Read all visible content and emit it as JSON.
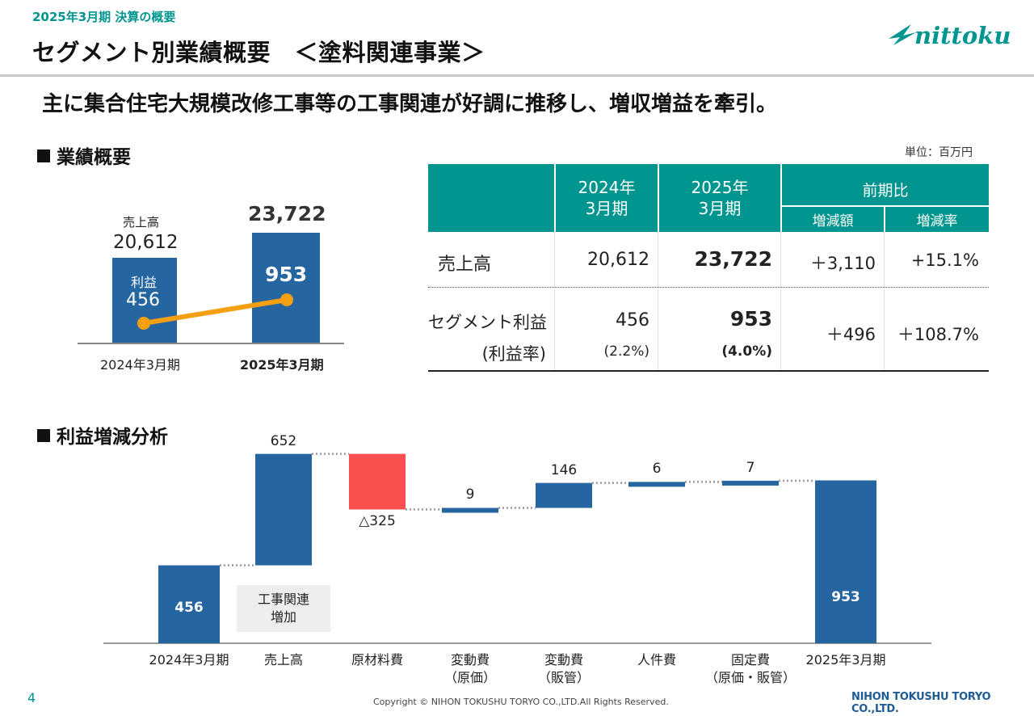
{
  "header": {
    "fiscal_label": "2025年3月期 決算の概要",
    "title": "セグメント別業績概要　＜塗料関連事業＞",
    "logo_text": "nittoku"
  },
  "lead_text": "主に集合住宅大規模改修工事等の工事関連が好調に推移し、増収増益を牽引。",
  "section_results": "業績概要",
  "section_analysis": "利益増減分析",
  "unit_label": "単位：百万円",
  "mini_chart": {
    "categories": [
      "2024年3月期",
      "2025年3月期"
    ],
    "sales_label": "売上高",
    "profit_label": "利益",
    "sales": [
      20612,
      23722
    ],
    "sales_text": [
      "20,612",
      "23,722"
    ],
    "profit": [
      456,
      953
    ],
    "profit_text": [
      "456",
      "953"
    ],
    "bar_color": "#2565a0",
    "line_color": "#f5a012"
  },
  "table": {
    "headers": {
      "y2024": "2024年\n3月期",
      "y2025": "2025年\n3月期",
      "comparison": "前期比",
      "diff": "増減額",
      "rate": "増減率"
    },
    "rows": [
      {
        "label": "売上高",
        "sublabel": "",
        "v2024": "20,612",
        "v2024_sub": "",
        "v2025": "23,722",
        "v2025_sub": "",
        "diff": "＋3,110",
        "rate": "+15.1%"
      },
      {
        "label": "セグメント利益",
        "sublabel": "(利益率)",
        "v2024": "456",
        "v2024_sub": "(2.2%)",
        "v2025": "953",
        "v2025_sub": "(4.0%)",
        "diff": "＋496",
        "rate": "＋108.7%"
      }
    ],
    "header_color": "#00958f"
  },
  "chart_data": {
    "type": "waterfall",
    "categories": [
      "2024年3月期",
      "売上高",
      "原材料費",
      "変動費\n（原価）",
      "変動費\n（販管）",
      "人件費",
      "固定費\n（原価・販管）",
      "2025年3月期"
    ],
    "values": [
      456,
      652,
      -325,
      9,
      146,
      6,
      7,
      953
    ],
    "value_labels": [
      "456",
      "652",
      "△325",
      "9",
      "146",
      "6",
      "7",
      "953"
    ],
    "kinds": [
      "total",
      "delta",
      "delta",
      "delta",
      "delta",
      "delta",
      "delta",
      "total"
    ],
    "annotation": "工事関連\n増加",
    "colors": {
      "positive": "#2565a0",
      "negative": "#fa4f4f",
      "total": "#2565a0"
    }
  },
  "footer": {
    "page": "4",
    "copyright": "Copyright © NIHON TOKUSHU TORYO CO.,LTD.All Rights Reserved.",
    "company": "NIHON TOKUSHU TORYO CO.,LTD."
  }
}
